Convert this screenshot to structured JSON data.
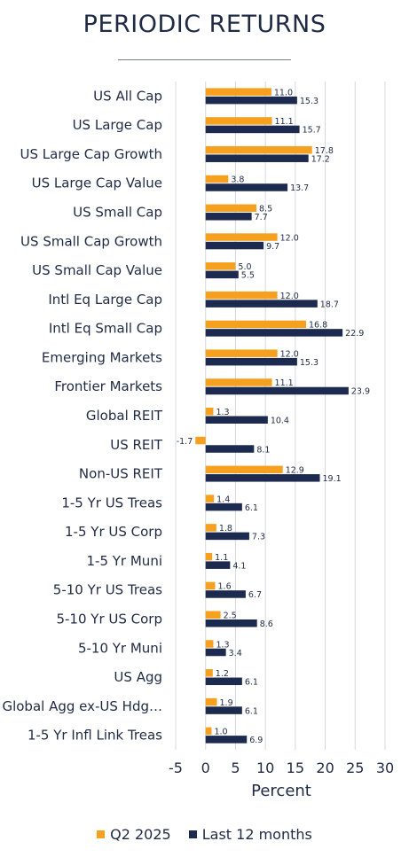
{
  "chart_data": {
    "type": "bar",
    "orientation": "horizontal",
    "title": "PERIODIC RETURNS",
    "xlabel": "Percent",
    "ylabel": "",
    "xlim": [
      -5,
      30
    ],
    "xticks": [
      -5,
      0,
      5,
      10,
      15,
      20,
      25,
      30
    ],
    "grid": true,
    "legend_position": "bottom",
    "categories": [
      "US All Cap",
      "US Large Cap",
      "US Large Cap Growth",
      "US Large Cap Value",
      "US Small Cap",
      "US Small Cap Growth",
      "US Small Cap Value",
      "Intl Eq Large Cap",
      "Intl Eq Small Cap",
      "Emerging Markets",
      "Frontier Markets",
      "Global REIT",
      "US REIT",
      "Non-US REIT",
      "1-5 Yr US Treas",
      "1-5 Yr US Corp",
      "1-5 Yr Muni",
      "5-10 Yr US Treas",
      "5-10 Yr US Corp",
      "5-10 Yr Muni",
      "US Agg",
      "Global Agg ex-US Hdg…",
      "1-5 Yr Infl Link Treas"
    ],
    "series": [
      {
        "name": "Q2 2025",
        "color": "#f5a11f",
        "values": [
          11.0,
          11.1,
          17.8,
          3.8,
          8.5,
          12.0,
          5.0,
          12.0,
          16.8,
          12.0,
          11.1,
          1.3,
          -1.7,
          12.9,
          1.4,
          1.8,
          1.1,
          1.6,
          2.5,
          1.3,
          1.2,
          1.9,
          1.0
        ],
        "labels": [
          "11.0",
          "11.1",
          "17.8",
          "3.8",
          "8.5",
          "12.0",
          "5.0",
          "12.0",
          "16.8",
          "12.0",
          "11.1",
          "1.3",
          "-1.7",
          "12.9",
          "1.4",
          "1.8",
          "1.1",
          "1.6",
          "2.5",
          "1.3",
          "1.2",
          "1.9",
          "1.0"
        ]
      },
      {
        "name": "Last 12 months",
        "color": "#1b2a4e",
        "values": [
          15.3,
          15.7,
          17.2,
          13.7,
          7.7,
          9.7,
          5.5,
          18.7,
          22.9,
          15.3,
          23.9,
          10.4,
          8.1,
          19.1,
          6.1,
          7.3,
          4.1,
          6.7,
          8.6,
          3.4,
          6.1,
          6.1,
          6.9
        ],
        "labels": [
          "15.3",
          "15.7",
          "17.2",
          "13.7",
          "7.7",
          "9.7",
          "5.5",
          "18.7",
          "22.9",
          "15.3",
          "23.9",
          "10.4",
          "8.1",
          "19.1",
          "6.1",
          "7.3",
          "4.1",
          "6.7",
          "8.6",
          "3.4",
          "6.1",
          "6.1",
          "6.9"
        ]
      }
    ]
  }
}
